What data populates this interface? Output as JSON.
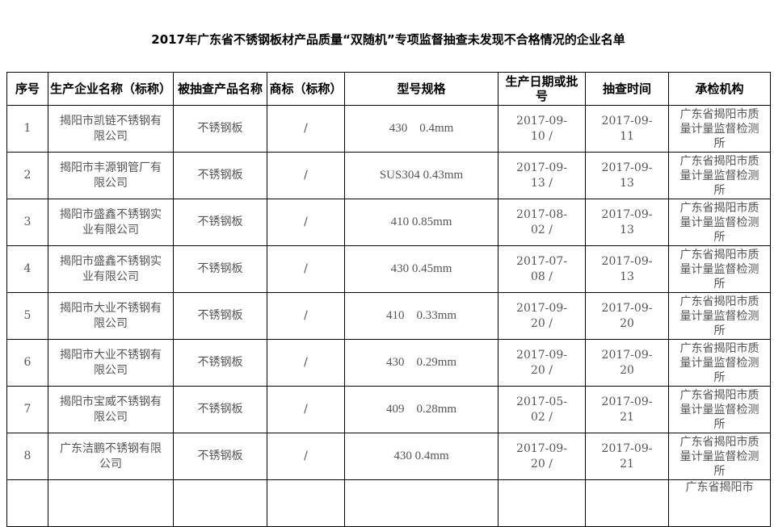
{
  "title": "2017年广东省不锈钢板材产品质量“双随机”专项监督抽查未发现不合格情况的企业名单",
  "headers": [
    "序号",
    "生产企业名称（标称）",
    "被抽查产品名称",
    "商标（标称）",
    "型号规格",
    "生产日期或批号",
    "抽查时间",
    "承检机构"
  ],
  "rows": [
    {
      "no": "1",
      "company": "揭阳市凯链不锈钢有限公司",
      "product": "不锈钢板",
      "brand": "/",
      "spec": "430　0.4mm",
      "date": "2017-09-10 /",
      "check": "2017-09-11",
      "org": "广东省揭阳市质量计量监督检测所"
    },
    {
      "no": "2",
      "company": "揭阳市丰源钢管厂有限公司",
      "product": "不锈钢板",
      "brand": "/",
      "spec": "SUS304 0.43mm",
      "date": "2017-09-13 /",
      "check": "2017-09-13",
      "org": "广东省揭阳市质量计量监督检测所"
    },
    {
      "no": "3",
      "company": "揭阳市盛鑫不锈钢实业有限公司",
      "product": "不锈钢板",
      "brand": "/",
      "spec": "410 0.85mm",
      "date": "2017-08-02 /",
      "check": "2017-09-13",
      "org": "广东省揭阳市质量计量监督检测所"
    },
    {
      "no": "4",
      "company": "揭阳市盛鑫不锈钢实业有限公司",
      "product": "不锈钢板",
      "brand": "/",
      "spec": "430 0.45mm",
      "date": "2017-07-08 /",
      "check": "2017-09-13",
      "org": "广东省揭阳市质量计量监督检测所"
    },
    {
      "no": "5",
      "company": "揭阳市大业不锈钢有限公司",
      "product": "不锈钢板",
      "brand": "/",
      "spec": "410　0.33mm",
      "date": "2017-09-20 /",
      "check": "2017-09-20",
      "org": "广东省揭阳市质量计量监督检测所"
    },
    {
      "no": "6",
      "company": "揭阳市大业不锈钢有限公司",
      "product": "不锈钢板",
      "brand": "/",
      "spec": "430　0.29mm",
      "date": "2017-09-20 /",
      "check": "2017-09-20",
      "org": "广东省揭阳市质量计量监督检测所"
    },
    {
      "no": "7",
      "company": "揭阳市宝威不锈钢有限公司",
      "product": "不锈钢板",
      "brand": "/",
      "spec": "409　0.28mm",
      "date": "2017-05-02 /",
      "check": "2017-09-21",
      "org": "广东省揭阳市质量计量监督检测所"
    },
    {
      "no": "8",
      "company": "广东洁鹏不锈钢有限公司",
      "product": "不锈钢板",
      "brand": "/",
      "spec": "430 0.4mm",
      "date": "2017-09-20 /",
      "check": "2017-09-21",
      "org": "广东省揭阳市质量计量监督检测所"
    },
    {
      "no": "",
      "company": "",
      "product": "",
      "brand": "",
      "spec": "",
      "date": "",
      "check": "",
      "org": "广东省揭阳市"
    }
  ]
}
